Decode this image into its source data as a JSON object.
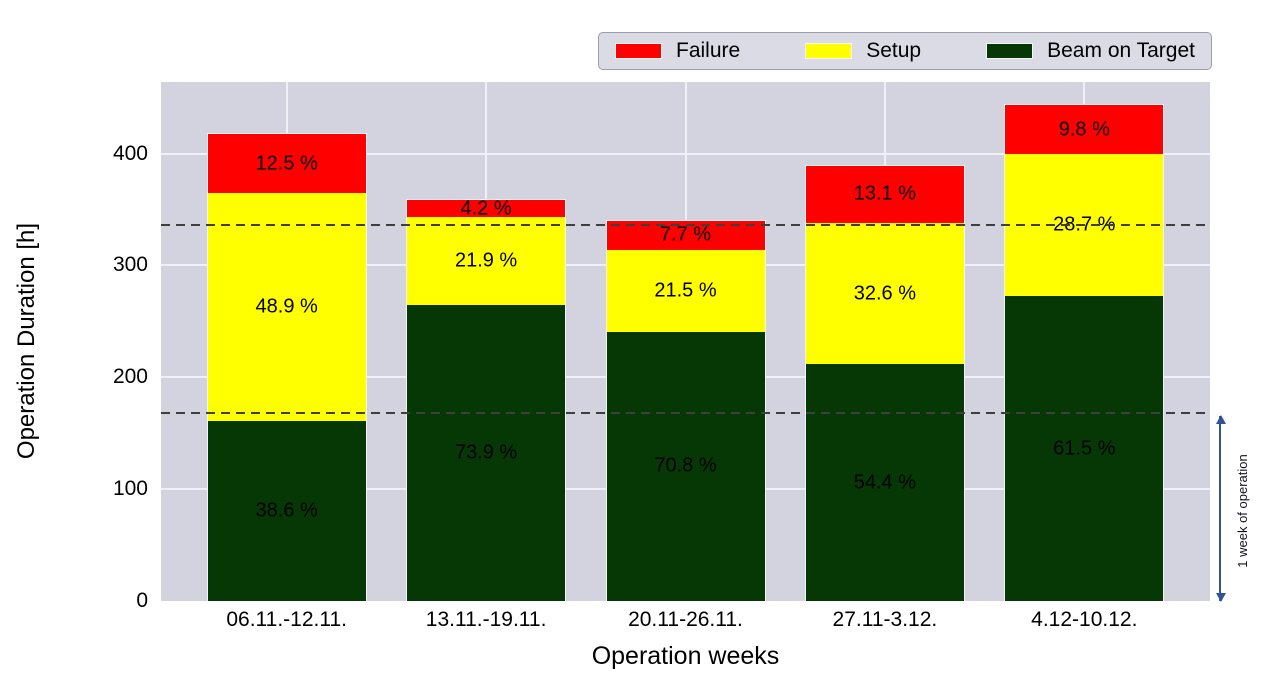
{
  "figure": {
    "kind": "stacked-bar-chart"
  },
  "legend": {
    "items": [
      {
        "label": "Failure",
        "color": "#ff0000"
      },
      {
        "label": "Setup",
        "color": "#ffff00"
      },
      {
        "label": "Beam on Target",
        "color": "#053805"
      }
    ]
  },
  "axes": {
    "ylabel": "Operation Duration [h]",
    "xlabel": "Operation weeks",
    "yticks": [
      0,
      100,
      200,
      300,
      400
    ],
    "ymax": 464
  },
  "chart_data": {
    "type": "bar",
    "stacked": true,
    "title": "",
    "xlabel": "Operation weeks",
    "ylabel": "Operation Duration [h]",
    "ylim": [
      0,
      464
    ],
    "grid": true,
    "legend_position": "top-right",
    "categories": [
      "06.11.-12.11.",
      "13.11.-19.11.",
      "20.11-26.11.",
      "27.11-3.12.",
      "4.12-10.12."
    ],
    "totals_hours_est": [
      418,
      359,
      341,
      390,
      444
    ],
    "series": [
      {
        "name": "Beam on Target",
        "color": "#053805",
        "values_pct": [
          38.6,
          73.9,
          70.8,
          54.4,
          61.5
        ],
        "labels": [
          "38.6 %",
          "73.9 %",
          "70.8 %",
          "54.4 %",
          "61.5 %"
        ]
      },
      {
        "name": "Setup",
        "color": "#ffff00",
        "values_pct": [
          48.9,
          21.9,
          21.5,
          32.6,
          28.7
        ],
        "labels": [
          "48.9 %",
          "21.9 %",
          "21.5 %",
          "32.6 %",
          "28.7 %"
        ]
      },
      {
        "name": "Failure",
        "color": "#ff0000",
        "values_pct": [
          12.5,
          4.2,
          7.7,
          13.1,
          9.8
        ],
        "labels": [
          "12.5 %",
          "4.2 %",
          "7.7 %",
          "13.1 %",
          "9.8 %"
        ]
      }
    ],
    "reference_lines_hours": [
      168,
      336
    ],
    "annotation": {
      "label": "1 week of operation",
      "from_hours": 0,
      "to_hours": 168
    }
  },
  "colors": {
    "plot_bg": "#d3d3e0",
    "grid": "#f0f1f7",
    "dashed": "#3f3f3f",
    "arrow": "#31519b",
    "legend_bg": "#dbdbe5",
    "legend_border": "#9d9dab",
    "text": "#000000"
  }
}
